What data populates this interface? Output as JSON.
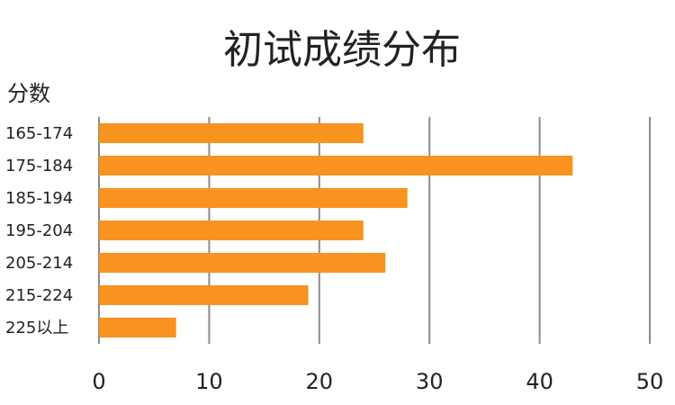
{
  "chart_data": {
    "type": "bar",
    "orientation": "horizontal",
    "title": "初试成绩分布",
    "ylabel": "分数",
    "categories": [
      "165-174",
      "175-184",
      "185-194",
      "195-204",
      "205-214",
      "215-224",
      "225以上"
    ],
    "values": [
      24,
      43,
      28,
      24,
      26,
      19,
      7
    ],
    "xlim": [
      0,
      50
    ],
    "xticks": [
      0,
      10,
      20,
      30,
      40,
      50
    ],
    "grid": true,
    "legend": "none",
    "bar_color": "#f7931e"
  }
}
